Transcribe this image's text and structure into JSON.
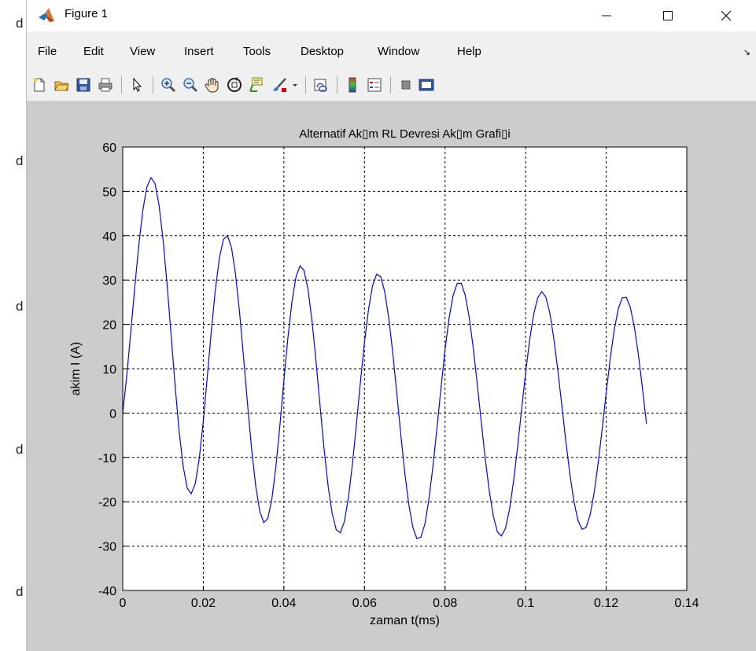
{
  "background_strip": {
    "letters": [
      "d",
      "d",
      "d",
      "d",
      "d"
    ]
  },
  "window": {
    "title": "Figure 1",
    "controls": {
      "minimize": "—",
      "maximize": "☐",
      "close": "✕"
    }
  },
  "menubar": {
    "items": [
      "File",
      "Edit",
      "View",
      "Insert",
      "Tools",
      "Desktop",
      "Window",
      "Help"
    ],
    "dock_arrow": "↘"
  },
  "toolbar": {
    "icons": [
      "new-figure-icon",
      "open-file-icon",
      "save-icon",
      "print-icon",
      "pointer-icon",
      "zoom-in-icon",
      "zoom-out-icon",
      "pan-hand-icon",
      "rotate-3d-icon",
      "data-cursor-icon",
      "brush-icon",
      "link-plot-icon",
      "colorbar-icon",
      "legend-icon",
      "hide-plot-tools-icon",
      "show-plot-tools-icon"
    ]
  },
  "colors": {
    "figure_bg": "#cccccc",
    "axes_bg": "#ffffff",
    "line": "#0000ff",
    "grid": "#000000"
  },
  "chart_data": {
    "type": "line",
    "title": "Alternatif Ak▯m RL Devresi Ak▯m Grafi▯i",
    "xlabel": "zaman t(ms)",
    "ylabel": "akim I (A)",
    "xlim": [
      0,
      0.14
    ],
    "ylim": [
      -40,
      60
    ],
    "xticks": [
      0,
      0.02,
      0.04,
      0.06,
      0.08,
      0.1,
      0.12,
      0.14
    ],
    "xtick_labels": [
      "0",
      "0.02",
      "0.04",
      "0.06",
      "0.08",
      "0.1",
      "0.12",
      "0.14"
    ],
    "yticks": [
      -40,
      -30,
      -20,
      -10,
      0,
      10,
      20,
      30,
      40,
      50,
      60
    ],
    "ytick_labels": [
      "-40",
      "-30",
      "-20",
      "-10",
      "0",
      "10",
      "20",
      "30",
      "40",
      "50",
      "60"
    ],
    "grid": true,
    "grid_style": "dashed",
    "line_color": "#0000ff",
    "series": [
      {
        "x": [
          0,
          0.001,
          0.002,
          0.003,
          0.004,
          0.005,
          0.006,
          0.007,
          0.008,
          0.009,
          0.01,
          0.011,
          0.012,
          0.013,
          0.014,
          0.015,
          0.016,
          0.017,
          0.018,
          0.019,
          0.02,
          0.021,
          0.022,
          0.023,
          0.024,
          0.025,
          0.026,
          0.027,
          0.028,
          0.029,
          0.03,
          0.031,
          0.032,
          0.033,
          0.034,
          0.035,
          0.036,
          0.037,
          0.038,
          0.039,
          0.04,
          0.041,
          0.042,
          0.043,
          0.044,
          0.045,
          0.046,
          0.047,
          0.048,
          0.049,
          0.05,
          0.051,
          0.052,
          0.053,
          0.054,
          0.055,
          0.056,
          0.057,
          0.058,
          0.059,
          0.06,
          0.061,
          0.062,
          0.063,
          0.064,
          0.065,
          0.066,
          0.067,
          0.068,
          0.069,
          0.07,
          0.071,
          0.072,
          0.073,
          0.074,
          0.075,
          0.076,
          0.077,
          0.078,
          0.079,
          0.08,
          0.081,
          0.082,
          0.083,
          0.084,
          0.085,
          0.086,
          0.087,
          0.088,
          0.089,
          0.09,
          0.091,
          0.092,
          0.093,
          0.094,
          0.095,
          0.096,
          0.097,
          0.098,
          0.099,
          0.1,
          0.101,
          0.102,
          0.103,
          0.104,
          0.105,
          0.106,
          0.107,
          0.108,
          0.109,
          0.11,
          0.111,
          0.112,
          0.113,
          0.114,
          0.115,
          0.116,
          0.117,
          0.118,
          0.119,
          0.12,
          0.121,
          0.122,
          0.123,
          0.124,
          0.125,
          0.126,
          0.127,
          0.128,
          0.129,
          0.13
        ],
        "y": [
          0,
          8.4,
          18.3,
          28.5,
          38.0,
          45.8,
          51.0,
          53.1,
          51.8,
          47.0,
          39.2,
          29.1,
          17.7,
          6.2,
          -4.1,
          -12.0,
          -16.9,
          -18.2,
          -15.9,
          -10.2,
          -1.8,
          8.3,
          18.6,
          27.9,
          35.0,
          39.2,
          40.0,
          37.3,
          31.3,
          22.7,
          12.5,
          1.8,
          -8.2,
          -16.4,
          -22.1,
          -24.7,
          -23.8,
          -19.5,
          -12.2,
          -2.9,
          7.3,
          17.0,
          25.1,
          30.7,
          33.2,
          32.2,
          27.8,
          20.6,
          11.4,
          1.4,
          -8.3,
          -16.6,
          -22.7,
          -26.3,
          -27.0,
          -24.5,
          -19.2,
          -11.6,
          -2.5,
          7.0,
          15.9,
          23.3,
          28.7,
          31.3,
          30.8,
          27.5,
          21.6,
          13.8,
          4.7,
          -4.7,
          -13.4,
          -20.6,
          -25.7,
          -28.3,
          -28.0,
          -25.0,
          -19.4,
          -12.0,
          -3.3,
          5.7,
          14.3,
          21.4,
          26.5,
          29.2,
          29.3,
          26.6,
          21.6,
          14.7,
          6.5,
          -2.1,
          -10.5,
          -17.7,
          -23.3,
          -26.8,
          -27.7,
          -26.0,
          -21.7,
          -15.4,
          -7.7,
          0.8,
          9.1,
          16.5,
          22.3,
          26.0,
          27.4,
          26.2,
          22.6,
          16.8,
          9.6,
          1.6,
          -6.5,
          -13.9,
          -20.0,
          -24.2,
          -26.2,
          -25.8,
          -23.0,
          -18.0,
          -11.3,
          -3.6,
          4.6,
          12.3,
          18.8,
          23.5,
          26.0,
          26.1,
          23.8,
          19.3,
          13.1,
          5.6,
          -2.4
        ]
      }
    ]
  }
}
